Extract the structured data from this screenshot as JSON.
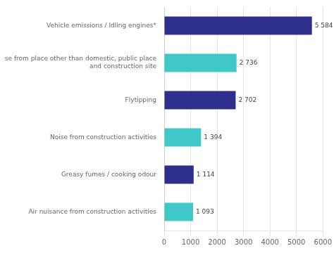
{
  "chart_data": {
    "type": "bar",
    "orientation": "horizontal",
    "categories": [
      "Air nuisance from construction activities",
      "Greasy fumes / cooking odour",
      "Noise from construction activities",
      "Flytipping",
      "Noise from place other than domestic, public place\nand construction site",
      "Vehicle emissions / Idling engines*"
    ],
    "values": [
      1093,
      1114,
      1394,
      2702,
      2736,
      5584
    ],
    "value_labels": [
      "1 093",
      "1 114",
      "1 394",
      "2 702",
      "2 736",
      "5 584"
    ],
    "colors": [
      "#40C8C8",
      "#2E2E8C",
      "#40C8C8",
      "#2E2E8C",
      "#40C8C8",
      "#2E2E8C"
    ],
    "xlim": [
      0,
      6000
    ],
    "xticks": [
      0,
      1000,
      2000,
      3000,
      4000,
      5000,
      6000
    ],
    "grid": true,
    "data_labels": true
  }
}
